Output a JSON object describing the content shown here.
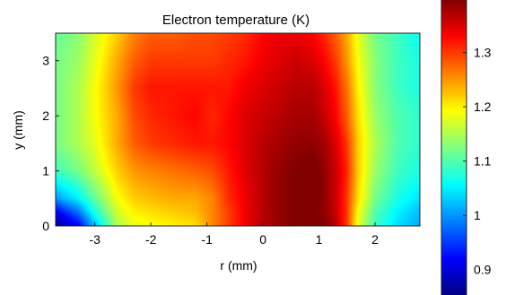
{
  "chart_data": {
    "type": "heatmap",
    "title": "Electron temperature (K)",
    "xlabel": "r (mm)",
    "ylabel": "y (mm)",
    "xlim": [
      -3.7,
      2.8
    ],
    "ylim": [
      0,
      3.5
    ],
    "x_ticks": [
      -3,
      -2,
      -1,
      0,
      1,
      2
    ],
    "y_ticks": [
      0,
      1,
      2,
      3
    ],
    "colorbar": {
      "range": [
        0.85,
        1.4
      ],
      "ticks": [
        0.9,
        1.0,
        1.1,
        1.2,
        1.3
      ],
      "tick_labels": [
        "0.9",
        "1",
        "1.1",
        "1.2",
        "1.3"
      ],
      "colormap": "jet"
    },
    "grid": false,
    "x_samples": [
      -3.7,
      -3.3,
      -3.0,
      -2.6,
      -2.3,
      -2.0,
      -1.6,
      -1.2,
      -0.9,
      -0.6,
      -0.3,
      0.0,
      0.3,
      0.6,
      0.9,
      1.1,
      1.3,
      1.5,
      1.7,
      2.0,
      2.4,
      2.8
    ],
    "y_samples": [
      0.0,
      0.25,
      0.5,
      1.0,
      1.5,
      2.0,
      2.5,
      3.0,
      3.5
    ],
    "z": [
      [
        0.86,
        0.91,
        1.02,
        1.15,
        1.18,
        1.19,
        1.2,
        1.21,
        1.26,
        1.3,
        1.34,
        1.37,
        1.39,
        1.4,
        1.4,
        1.4,
        1.37,
        1.3,
        1.18,
        1.09,
        1.04,
        1.01
      ],
      [
        0.91,
        0.98,
        1.07,
        1.17,
        1.2,
        1.21,
        1.22,
        1.23,
        1.26,
        1.3,
        1.34,
        1.37,
        1.39,
        1.4,
        1.4,
        1.39,
        1.36,
        1.3,
        1.19,
        1.1,
        1.05,
        1.02
      ],
      [
        1.0,
        1.05,
        1.11,
        1.19,
        1.22,
        1.23,
        1.24,
        1.24,
        1.26,
        1.31,
        1.34,
        1.37,
        1.39,
        1.4,
        1.41,
        1.39,
        1.36,
        1.3,
        1.21,
        1.12,
        1.07,
        1.04
      ],
      [
        1.09,
        1.12,
        1.16,
        1.22,
        1.25,
        1.26,
        1.27,
        1.28,
        1.29,
        1.32,
        1.35,
        1.37,
        1.39,
        1.4,
        1.41,
        1.39,
        1.36,
        1.31,
        1.22,
        1.14,
        1.09,
        1.07
      ],
      [
        1.12,
        1.15,
        1.18,
        1.24,
        1.28,
        1.3,
        1.31,
        1.32,
        1.32,
        1.33,
        1.35,
        1.37,
        1.38,
        1.39,
        1.39,
        1.38,
        1.35,
        1.3,
        1.22,
        1.15,
        1.1,
        1.08
      ],
      [
        1.12,
        1.15,
        1.19,
        1.24,
        1.29,
        1.31,
        1.32,
        1.33,
        1.31,
        1.33,
        1.35,
        1.36,
        1.37,
        1.38,
        1.38,
        1.36,
        1.33,
        1.28,
        1.21,
        1.14,
        1.1,
        1.08
      ],
      [
        1.12,
        1.15,
        1.19,
        1.25,
        1.3,
        1.32,
        1.32,
        1.32,
        1.32,
        1.32,
        1.34,
        1.35,
        1.36,
        1.37,
        1.37,
        1.35,
        1.32,
        1.27,
        1.2,
        1.13,
        1.09,
        1.07
      ],
      [
        1.12,
        1.14,
        1.18,
        1.24,
        1.28,
        1.3,
        1.3,
        1.3,
        1.3,
        1.31,
        1.32,
        1.34,
        1.35,
        1.36,
        1.35,
        1.33,
        1.3,
        1.25,
        1.19,
        1.13,
        1.09,
        1.07
      ],
      [
        1.11,
        1.13,
        1.17,
        1.22,
        1.26,
        1.28,
        1.28,
        1.29,
        1.29,
        1.3,
        1.31,
        1.33,
        1.34,
        1.34,
        1.33,
        1.31,
        1.28,
        1.24,
        1.18,
        1.12,
        1.09,
        1.06
      ]
    ]
  }
}
